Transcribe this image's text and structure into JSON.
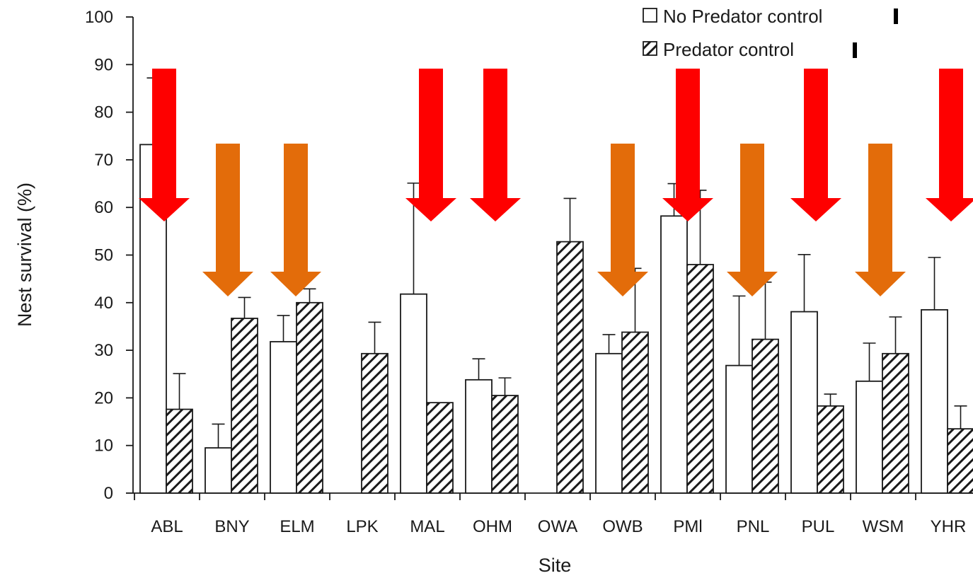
{
  "chart_data": {
    "type": "bar",
    "title": "",
    "xlabel": "Site",
    "ylabel": "Nest survival (%)",
    "ylim": [
      0,
      100
    ],
    "yticks": [
      0,
      10,
      20,
      30,
      40,
      50,
      60,
      70,
      80,
      90,
      100
    ],
    "categories": [
      "ABL",
      "BNY",
      "ELM",
      "LPK",
      "MAL",
      "OHM",
      "OWA",
      "OWB",
      "PMl",
      "PNL",
      "PUL",
      "WSM",
      "YHR"
    ],
    "series": [
      {
        "name": "No Predator control",
        "fill": "white",
        "values": [
          73.2,
          9.5,
          31.8,
          null,
          41.8,
          23.8,
          null,
          29.3,
          58.2,
          26.8,
          38.1,
          23.5,
          38.5
        ],
        "errors": [
          14,
          5,
          5.5,
          null,
          23.3,
          4.4,
          null,
          4,
          6.8,
          14.6,
          12,
          8,
          11
        ]
      },
      {
        "name": "Predator control",
        "fill": "hatched",
        "values": [
          17.6,
          36.7,
          40.0,
          29.3,
          19.0,
          20.5,
          52.8,
          33.8,
          48.0,
          32.3,
          18.3,
          29.3,
          13.5
        ],
        "errors": [
          7.5,
          4.4,
          2.9,
          6.6,
          0,
          3.7,
          9.1,
          13.4,
          15.6,
          12,
          2.5,
          7.7,
          4.8
        ]
      }
    ],
    "legend": {
      "position": "top-right",
      "labels": [
        "No Predator control",
        "Predator control"
      ]
    },
    "grid": false,
    "annotations": {
      "red_arrow_sites": [
        "ABL",
        "MAL",
        "OHM",
        "PMl",
        "PUL",
        "YHR"
      ],
      "orange_arrow_sites": [
        "BNY",
        "ELM",
        "OWB",
        "PNL",
        "WSM"
      ],
      "colors": {
        "red_arrow": "#fe0000",
        "orange_arrow": "#e36c0a"
      }
    }
  }
}
